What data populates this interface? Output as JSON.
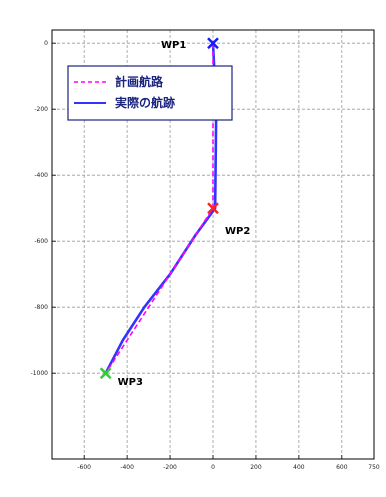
{
  "chart_data": {
    "type": "line",
    "title": "",
    "xlabel": "",
    "ylabel": "",
    "xlim": [
      -750,
      750
    ],
    "ylim": [
      -1260,
      40
    ],
    "xticks": [
      -600,
      -400,
      -200,
      0,
      200,
      400,
      600,
      750
    ],
    "xtick_labels": [
      "-600",
      "-400",
      "-200",
      "0",
      "200",
      "400",
      "600",
      "750"
    ],
    "yticks": [
      0,
      -200,
      -400,
      -600,
      -800,
      -1000
    ],
    "ytick_labels": [
      "0",
      "-200",
      "-400",
      "-600",
      "-800",
      "-1000"
    ],
    "grid": true,
    "legend_position": "top-left",
    "series": [
      {
        "name": "計画航路",
        "color": "#ff00ff",
        "style": "dashed",
        "x": [
          0,
          0,
          -500
        ],
        "y": [
          0,
          -500,
          -1000
        ]
      },
      {
        "name": "実際の航跡",
        "color": "#3333ff",
        "style": "solid",
        "x": [
          0,
          15,
          10,
          -80,
          -200,
          -320,
          -420,
          -500
        ],
        "y": [
          0,
          -200,
          -500,
          -580,
          -700,
          -800,
          -900,
          -1000
        ]
      }
    ],
    "waypoints": [
      {
        "label": "WP1",
        "x": 0,
        "y": 0,
        "color": "#1a1aff"
      },
      {
        "label": "WP2",
        "x": 0,
        "y": -500,
        "color": "#ff2222"
      },
      {
        "label": "WP3",
        "x": -500,
        "y": -1000,
        "color": "#33cc33"
      }
    ]
  }
}
